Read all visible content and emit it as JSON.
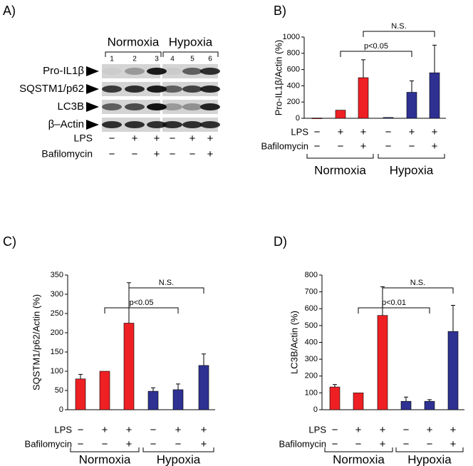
{
  "blot": {
    "label": "A)",
    "groups": [
      "Normoxia",
      "Hypoxia"
    ],
    "lanes": [
      "1",
      "2",
      "3",
      "4",
      "5",
      "6"
    ],
    "rows": [
      "Pro-IL1β",
      "SQSTM1/p62",
      "LC3B",
      "β–Actin"
    ],
    "conditions": [
      {
        "name": "LPS",
        "signs": [
          "−",
          "+",
          "+",
          "−",
          "+",
          "+"
        ]
      },
      {
        "name": "Bafilomycin",
        "signs": [
          "−",
          "−",
          "+",
          "−",
          "−",
          "+"
        ]
      }
    ]
  },
  "chart_data": [
    {
      "type": "bar",
      "label": "B)",
      "y_label": "Pro-IL1β/Actin (%)",
      "ylim": [
        0,
        1000
      ],
      "yticks": [
        0,
        200,
        400,
        600,
        800,
        1000
      ],
      "series": [
        {
          "name": "Normoxia",
          "color": "#ee2024",
          "values": [
            3,
            100,
            500,
            null,
            null,
            null
          ],
          "errors": [
            null,
            null,
            220,
            null,
            null,
            null
          ]
        },
        {
          "name": "Hypoxia",
          "color": "#2e3192",
          "values": [
            null,
            null,
            null,
            10,
            320,
            560
          ],
          "errors": [
            null,
            null,
            null,
            null,
            140,
            340
          ]
        }
      ],
      "conditions": [
        {
          "name": "LPS",
          "signs": [
            "−",
            "+",
            "+",
            "−",
            "+",
            "+"
          ]
        },
        {
          "name": "Bafilomycin",
          "signs": [
            "−",
            "−",
            "+",
            "−",
            "−",
            "+"
          ]
        }
      ],
      "annotations": [
        "N.S.",
        "p<0.05"
      ]
    },
    {
      "type": "bar",
      "label": "C)",
      "y_label": "SQSTM1/p62/Actin (%)",
      "ylim": [
        0,
        350
      ],
      "yticks": [
        0,
        50,
        100,
        150,
        200,
        250,
        300,
        350
      ],
      "series": [
        {
          "name": "Normoxia",
          "color": "#ee2024",
          "values": [
            80,
            100,
            225,
            null,
            null,
            null
          ],
          "errors": [
            12,
            null,
            105,
            null,
            null,
            null
          ]
        },
        {
          "name": "Hypoxia",
          "color": "#2e3192",
          "values": [
            null,
            null,
            null,
            48,
            52,
            115
          ],
          "errors": [
            null,
            null,
            null,
            9,
            15,
            30
          ]
        }
      ],
      "conditions": [
        {
          "name": "LPS",
          "signs": [
            "−",
            "+",
            "+",
            "−",
            "+",
            "+"
          ]
        },
        {
          "name": "Bafilomycin",
          "signs": [
            "−",
            "−",
            "+",
            "−",
            "−",
            "+"
          ]
        }
      ],
      "annotations": [
        "N.S.",
        "p<0.05"
      ]
    },
    {
      "type": "bar",
      "label": "D)",
      "y_label": "LC3B/Actin (%)",
      "ylim": [
        0,
        800
      ],
      "yticks": [
        0,
        100,
        200,
        300,
        400,
        500,
        600,
        700,
        800
      ],
      "series": [
        {
          "name": "Normoxia",
          "color": "#ee2024",
          "values": [
            135,
            100,
            560,
            null,
            null,
            null
          ],
          "errors": [
            15,
            null,
            170,
            null,
            null,
            null
          ]
        },
        {
          "name": "Hypoxia",
          "color": "#2e3192",
          "values": [
            null,
            null,
            null,
            50,
            50,
            465
          ],
          "errors": [
            null,
            null,
            null,
            25,
            10,
            155
          ]
        }
      ],
      "conditions": [
        {
          "name": "LPS",
          "signs": [
            "−",
            "+",
            "+",
            "−",
            "+",
            "+"
          ]
        },
        {
          "name": "Bafilomycin",
          "signs": [
            "−",
            "−",
            "+",
            "−",
            "−",
            "+"
          ]
        }
      ],
      "annotations": [
        "N.S.",
        "p<0.01"
      ]
    }
  ]
}
